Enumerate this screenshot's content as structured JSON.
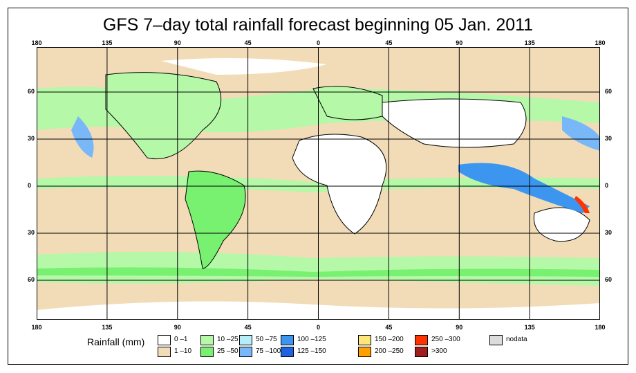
{
  "title": "GFS 7–day total rainfall forecast beginning 05 Jan. 2011",
  "lon_labels": [
    "180",
    "135",
    "90",
    "45",
    "0",
    "45",
    "90",
    "135",
    "180"
  ],
  "lat_labels": [
    "60",
    "30",
    "0",
    "30",
    "60"
  ],
  "legend": {
    "title": "Rainfall (mm)",
    "items": [
      {
        "label": "0 –1",
        "color": "#ffffff"
      },
      {
        "label": "1 –10",
        "color": "#f2dcb8"
      },
      {
        "label": "10 –25",
        "color": "#b4f8a8"
      },
      {
        "label": "25 –50",
        "color": "#78f070"
      },
      {
        "label": "50 –75",
        "color": "#b4eef8"
      },
      {
        "label": "75 –100",
        "color": "#78b8f8"
      },
      {
        "label": "100 –125",
        "color": "#3c96f0"
      },
      {
        "label": "125 –150",
        "color": "#1e64e0"
      },
      {
        "label": "150 –200",
        "color": "#ffe678"
      },
      {
        "label": "200 –250",
        "color": "#ffa000"
      },
      {
        "label": "250 –300",
        "color": "#ff3200"
      },
      {
        "label": ">300",
        "color": "#a01e1e"
      },
      {
        "label": "nodata",
        "color": "#dcdcdc"
      }
    ]
  }
}
